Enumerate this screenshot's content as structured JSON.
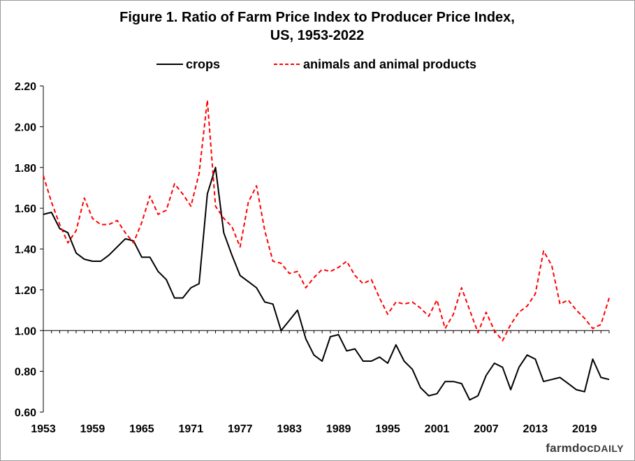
{
  "brand": {
    "part1": "farmdoc",
    "part2": "DAILY"
  },
  "chart_data": {
    "type": "line",
    "title": "Figure 1.  Ratio of Farm Price Index to Producer Price Index,",
    "subtitle": "US, 1953-2022",
    "xlabel": "",
    "ylabel": "",
    "xlim": [
      1953,
      2022
    ],
    "ylim": [
      0.6,
      2.2
    ],
    "y_ticks": [
      "0.60",
      "0.80",
      "1.00",
      "1.20",
      "1.40",
      "1.60",
      "1.80",
      "2.00",
      "2.20"
    ],
    "x_ticks": [
      "1953",
      "1959",
      "1965",
      "1971",
      "1977",
      "1983",
      "1989",
      "1995",
      "2001",
      "2007",
      "2013",
      "2019"
    ],
    "grid": false,
    "legend": "top",
    "baseline": 1.0,
    "x": [
      1953,
      1954,
      1955,
      1956,
      1957,
      1958,
      1959,
      1960,
      1961,
      1962,
      1963,
      1964,
      1965,
      1966,
      1967,
      1968,
      1969,
      1970,
      1971,
      1972,
      1973,
      1974,
      1975,
      1976,
      1977,
      1978,
      1979,
      1980,
      1981,
      1982,
      1983,
      1984,
      1985,
      1986,
      1987,
      1988,
      1989,
      1990,
      1991,
      1992,
      1993,
      1994,
      1995,
      1996,
      1997,
      1998,
      1999,
      2000,
      2001,
      2002,
      2003,
      2004,
      2005,
      2006,
      2007,
      2008,
      2009,
      2010,
      2011,
      2012,
      2013,
      2014,
      2015,
      2016,
      2017,
      2018,
      2019,
      2020,
      2021,
      2022
    ],
    "series": [
      {
        "name": "crops",
        "color": "#000000",
        "style": "solid",
        "values": [
          1.57,
          1.58,
          1.5,
          1.48,
          1.38,
          1.35,
          1.34,
          1.34,
          1.37,
          1.41,
          1.45,
          1.44,
          1.36,
          1.36,
          1.29,
          1.25,
          1.16,
          1.16,
          1.21,
          1.23,
          1.67,
          1.8,
          1.48,
          1.37,
          1.27,
          1.24,
          1.21,
          1.14,
          1.13,
          1.0,
          1.05,
          1.1,
          0.96,
          0.88,
          0.85,
          0.97,
          0.98,
          0.9,
          0.91,
          0.85,
          0.85,
          0.87,
          0.84,
          0.93,
          0.85,
          0.81,
          0.72,
          0.68,
          0.69,
          0.75,
          0.75,
          0.74,
          0.66,
          0.68,
          0.78,
          0.84,
          0.82,
          0.71,
          0.82,
          0.88,
          0.86,
          0.75,
          0.76,
          0.77,
          0.74,
          0.71,
          0.7,
          0.86,
          0.77,
          0.76
        ]
      },
      {
        "name": "animals and animal products",
        "color": "#ff0000",
        "style": "dashed",
        "values": [
          1.76,
          1.63,
          1.52,
          1.43,
          1.49,
          1.65,
          1.55,
          1.52,
          1.52,
          1.54,
          1.48,
          1.43,
          1.53,
          1.66,
          1.57,
          1.59,
          1.72,
          1.67,
          1.61,
          1.77,
          2.13,
          1.61,
          1.55,
          1.51,
          1.41,
          1.63,
          1.71,
          1.49,
          1.34,
          1.33,
          1.28,
          1.29,
          1.21,
          1.26,
          1.3,
          1.29,
          1.31,
          1.34,
          1.27,
          1.23,
          1.25,
          1.16,
          1.08,
          1.14,
          1.13,
          1.14,
          1.11,
          1.07,
          1.15,
          1.01,
          1.08,
          1.21,
          1.1,
          0.99,
          1.09,
          1.0,
          0.95,
          1.03,
          1.09,
          1.12,
          1.18,
          1.39,
          1.32,
          1.13,
          1.15,
          1.1,
          1.06,
          1.01,
          1.03,
          1.16
        ]
      }
    ]
  }
}
